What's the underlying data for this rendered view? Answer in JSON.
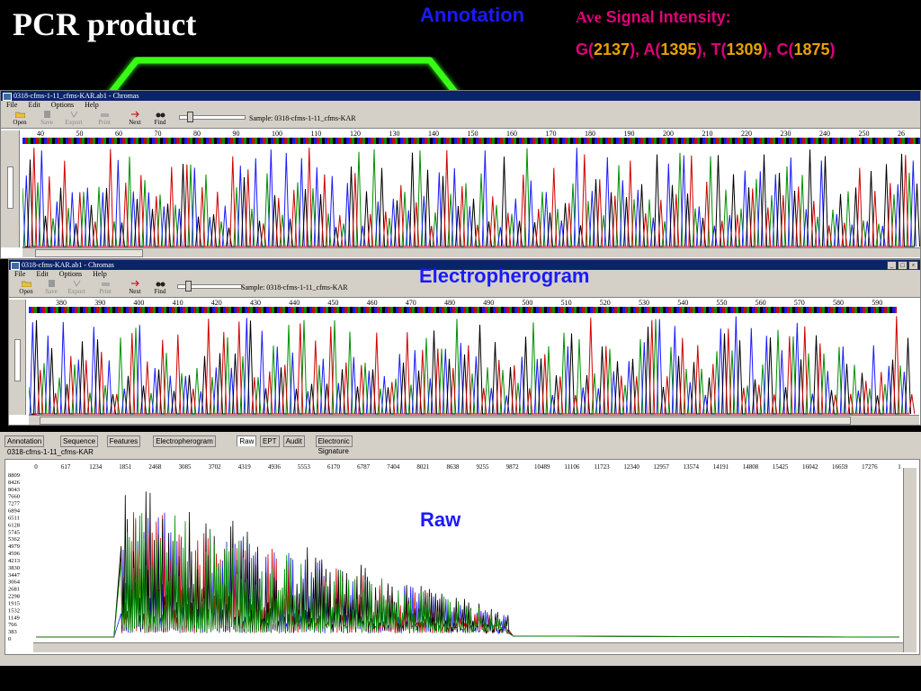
{
  "slide": {
    "title": "PCR product",
    "annotation_label": "Annotation",
    "ave_prefix": "Ave",
    "ave_rest": " Signal Intensity:",
    "intensity": [
      {
        "base": "G",
        "value": "2137"
      },
      {
        "base": "A",
        "value": "1395"
      },
      {
        "base": "T",
        "value": "1309"
      },
      {
        "base": "C",
        "value": "1875"
      }
    ],
    "electropherogram_label": "Electropherogram",
    "raw_label": "Raw"
  },
  "window1": {
    "title": "0318-cfms-1-11_cfms-KAR.ab1 - Chromas",
    "menu": [
      "File",
      "Edit",
      "Options",
      "Help"
    ],
    "toolbar": [
      {
        "label": "Open",
        "icon": "open-folder-icon",
        "enabled": true
      },
      {
        "label": "Save",
        "icon": "save-disk-icon",
        "enabled": false
      },
      {
        "label": "Export",
        "icon": "export-icon",
        "enabled": false
      },
      {
        "label": "Print",
        "icon": "printer-icon",
        "enabled": false
      },
      {
        "label": "Next",
        "icon": "next-arrow-icon",
        "enabled": true
      },
      {
        "label": "Find",
        "icon": "binoculars-icon",
        "enabled": true
      }
    ],
    "sample": "Sample: 0318-cfms-1-11_cfms-KAR",
    "ruler": [
      "40",
      "50",
      "60",
      "70",
      "80",
      "90",
      "100",
      "110",
      "120",
      "130",
      "140",
      "150",
      "160",
      "170",
      "180",
      "190",
      "200",
      "210",
      "220",
      "230",
      "240",
      "250",
      "26"
    ]
  },
  "window2": {
    "title": "0318-cfms-KAR.ab1 - Chromas",
    "menu": [
      "File",
      "Edit",
      "Options",
      "Help"
    ],
    "toolbar": [
      {
        "label": "Open",
        "icon": "open-folder-icon",
        "enabled": true
      },
      {
        "label": "Save",
        "icon": "save-disk-icon",
        "enabled": false
      },
      {
        "label": "Export",
        "icon": "export-icon",
        "enabled": false
      },
      {
        "label": "Print",
        "icon": "printer-icon",
        "enabled": false
      },
      {
        "label": "Next",
        "icon": "next-arrow-icon",
        "enabled": true
      },
      {
        "label": "Find",
        "icon": "binoculars-icon",
        "enabled": true
      }
    ],
    "sample": "Sample: 0318-cfms-1-11_cfms-KAR",
    "ruler": [
      "380",
      "390",
      "400",
      "410",
      "420",
      "430",
      "440",
      "450",
      "460",
      "470",
      "480",
      "490",
      "500",
      "510",
      "520",
      "530",
      "540",
      "550",
      "560",
      "570",
      "580",
      "590"
    ],
    "window_buttons": [
      "_",
      "□",
      "×"
    ]
  },
  "raw_panel": {
    "tabs": [
      "Annotation",
      "Sequence",
      "Features",
      "Electropherogram",
      "Raw",
      "EPT",
      "Audit",
      "Electronic Signature"
    ],
    "active_tab": "Raw",
    "sample_name": "0318-cfms-1-11_cfms-KAR",
    "x_ticks": [
      "0",
      "617",
      "1234",
      "1851",
      "2468",
      "3085",
      "3702",
      "4319",
      "4936",
      "5553",
      "6170",
      "6787",
      "7404",
      "8021",
      "8638",
      "9255",
      "9872",
      "10489",
      "11106",
      "11723",
      "12340",
      "12957",
      "13574",
      "14191",
      "14808",
      "15425",
      "16042",
      "16659",
      "17276",
      "1"
    ],
    "y_ticks": [
      "8809",
      "8426",
      "8043",
      "7660",
      "7277",
      "6894",
      "6511",
      "6128",
      "5745",
      "5362",
      "4979",
      "4596",
      "4213",
      "3830",
      "3447",
      "3064",
      "2681",
      "2298",
      "1915",
      "1532",
      "1149",
      "766",
      "383",
      "0"
    ]
  },
  "colors": {
    "G": "#009000",
    "A": "#1a1aff",
    "T": "#000000",
    "C": "#d00000",
    "titlebar": "#0a246a",
    "glow": "#39ff14"
  }
}
